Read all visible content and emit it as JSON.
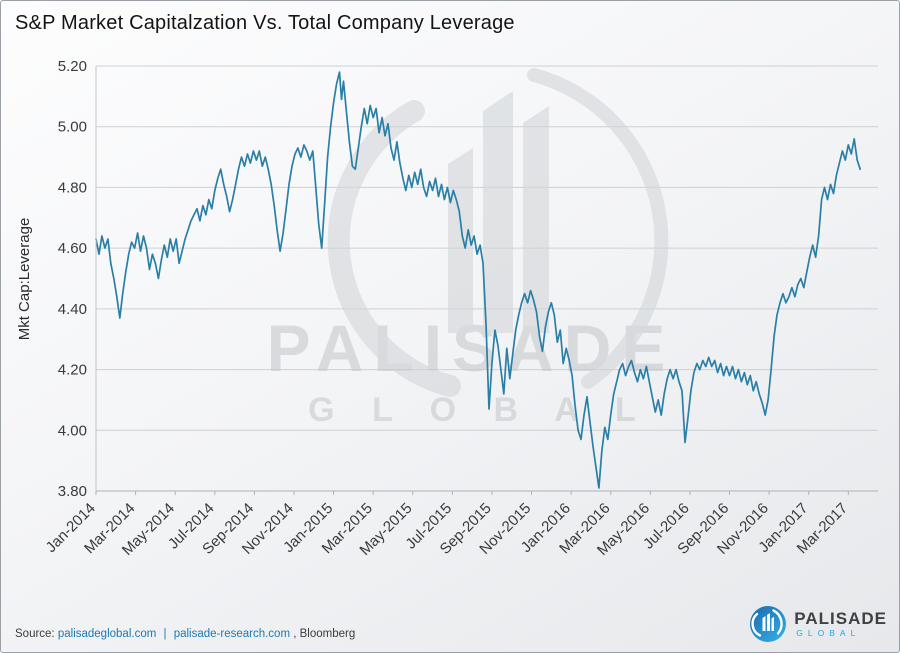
{
  "title": "S&P Market Capitalzation Vs. Total Company Leverage",
  "colors": {
    "line": "#2a7fa6",
    "grid": "#cdd0d3",
    "spine": "#aeb3b7",
    "left_spine": "#c2c6ca",
    "link": "#1d79b4",
    "watermark": "#cdd0d3",
    "logo_blue_dark": "#1a69ad",
    "logo_blue_light": "#35b1e8"
  },
  "watermark": {
    "line1": "PALISADE",
    "line2": "G L O B A L"
  },
  "footer": {
    "source_label": "Source:",
    "link1": "palisadeglobal.com",
    "separator": "|",
    "link2": "palisade-research.com",
    "suffix": ", Bloomberg"
  },
  "logo": {
    "name": "PALISADE",
    "sub": "GLOBAL"
  },
  "chart_data": {
    "type": "line",
    "title": "S&P Market Capitalzation Vs. Total Company Leverage",
    "xlabel": "",
    "ylabel": "Mkt Cap:Leverage",
    "ylim": [
      3.8,
      5.2
    ],
    "xlim_months_from_jan2014": [
      0,
      39.5
    ],
    "grid": "horizontal",
    "legend": "none",
    "line_color": "#2a7fa6",
    "y_ticks": [
      3.8,
      4.0,
      4.2,
      4.4,
      4.6,
      4.8,
      5.0,
      5.2
    ],
    "x_ticks": [
      {
        "label": "Jan-2014",
        "m": 0
      },
      {
        "label": "Mar-2014",
        "m": 2
      },
      {
        "label": "May-2014",
        "m": 4
      },
      {
        "label": "Jul-2014",
        "m": 6
      },
      {
        "label": "Sep-2014",
        "m": 8
      },
      {
        "label": "Nov-2014",
        "m": 10
      },
      {
        "label": "Jan-2015",
        "m": 12
      },
      {
        "label": "Mar-2015",
        "m": 14
      },
      {
        "label": "May-2015",
        "m": 16
      },
      {
        "label": "Jul-2015",
        "m": 18
      },
      {
        "label": "Sep-2015",
        "m": 20
      },
      {
        "label": "Nov-2015",
        "m": 22
      },
      {
        "label": "Jan-2016",
        "m": 24
      },
      {
        "label": "Mar-2016",
        "m": 26
      },
      {
        "label": "May-2016",
        "m": 28
      },
      {
        "label": "Jul-2016",
        "m": 30
      },
      {
        "label": "Sep-2016",
        "m": 32
      },
      {
        "label": "Nov-2016",
        "m": 34
      },
      {
        "label": "Jan-2017",
        "m": 36
      },
      {
        "label": "Mar-2017",
        "m": 38
      }
    ],
    "series": [
      {
        "name": "Mkt Cap:Leverage",
        "x_unit": "months since Jan-2014",
        "points": [
          [
            0,
            4.63
          ],
          [
            0.15,
            4.58
          ],
          [
            0.3,
            4.64
          ],
          [
            0.45,
            4.6
          ],
          [
            0.6,
            4.63
          ],
          [
            0.75,
            4.55
          ],
          [
            0.9,
            4.5
          ],
          [
            1.05,
            4.44
          ],
          [
            1.2,
            4.37
          ],
          [
            1.35,
            4.45
          ],
          [
            1.5,
            4.52
          ],
          [
            1.65,
            4.58
          ],
          [
            1.8,
            4.62
          ],
          [
            1.95,
            4.6
          ],
          [
            2.1,
            4.65
          ],
          [
            2.25,
            4.59
          ],
          [
            2.4,
            4.64
          ],
          [
            2.55,
            4.6
          ],
          [
            2.7,
            4.53
          ],
          [
            2.85,
            4.58
          ],
          [
            3,
            4.55
          ],
          [
            3.15,
            4.5
          ],
          [
            3.3,
            4.56
          ],
          [
            3.45,
            4.61
          ],
          [
            3.6,
            4.57
          ],
          [
            3.75,
            4.63
          ],
          [
            3.9,
            4.59
          ],
          [
            4.05,
            4.63
          ],
          [
            4.2,
            4.55
          ],
          [
            4.35,
            4.59
          ],
          [
            4.5,
            4.63
          ],
          [
            4.65,
            4.66
          ],
          [
            4.8,
            4.69
          ],
          [
            4.95,
            4.71
          ],
          [
            5.1,
            4.73
          ],
          [
            5.25,
            4.69
          ],
          [
            5.4,
            4.74
          ],
          [
            5.55,
            4.71
          ],
          [
            5.7,
            4.76
          ],
          [
            5.85,
            4.73
          ],
          [
            6,
            4.79
          ],
          [
            6.15,
            4.83
          ],
          [
            6.3,
            4.86
          ],
          [
            6.45,
            4.81
          ],
          [
            6.6,
            4.77
          ],
          [
            6.75,
            4.72
          ],
          [
            6.9,
            4.76
          ],
          [
            7.05,
            4.81
          ],
          [
            7.2,
            4.86
          ],
          [
            7.35,
            4.9
          ],
          [
            7.5,
            4.87
          ],
          [
            7.65,
            4.91
          ],
          [
            7.8,
            4.88
          ],
          [
            7.95,
            4.92
          ],
          [
            8.1,
            4.89
          ],
          [
            8.25,
            4.92
          ],
          [
            8.4,
            4.87
          ],
          [
            8.55,
            4.9
          ],
          [
            8.7,
            4.86
          ],
          [
            8.85,
            4.81
          ],
          [
            9,
            4.74
          ],
          [
            9.15,
            4.66
          ],
          [
            9.3,
            4.59
          ],
          [
            9.45,
            4.65
          ],
          [
            9.6,
            4.73
          ],
          [
            9.75,
            4.81
          ],
          [
            9.9,
            4.87
          ],
          [
            10.05,
            4.91
          ],
          [
            10.2,
            4.93
          ],
          [
            10.35,
            4.9
          ],
          [
            10.5,
            4.94
          ],
          [
            10.65,
            4.92
          ],
          [
            10.8,
            4.89
          ],
          [
            10.95,
            4.92
          ],
          [
            11.1,
            4.8
          ],
          [
            11.25,
            4.68
          ],
          [
            11.4,
            4.6
          ],
          [
            11.55,
            4.75
          ],
          [
            11.7,
            4.9
          ],
          [
            11.85,
            5
          ],
          [
            12,
            5.08
          ],
          [
            12.15,
            5.14
          ],
          [
            12.3,
            5.18
          ],
          [
            12.4,
            5.09
          ],
          [
            12.5,
            5.15
          ],
          [
            12.65,
            5.05
          ],
          [
            12.8,
            4.95
          ],
          [
            12.95,
            4.87
          ],
          [
            13.1,
            4.86
          ],
          [
            13.25,
            4.93
          ],
          [
            13.4,
            5
          ],
          [
            13.55,
            5.06
          ],
          [
            13.7,
            5.01
          ],
          [
            13.85,
            5.07
          ],
          [
            14,
            5.03
          ],
          [
            14.15,
            5.06
          ],
          [
            14.3,
            4.98
          ],
          [
            14.45,
            5.03
          ],
          [
            14.6,
            4.97
          ],
          [
            14.75,
            5.01
          ],
          [
            14.9,
            4.93
          ],
          [
            15.05,
            4.89
          ],
          [
            15.2,
            4.95
          ],
          [
            15.35,
            4.88
          ],
          [
            15.5,
            4.83
          ],
          [
            15.65,
            4.79
          ],
          [
            15.8,
            4.84
          ],
          [
            15.95,
            4.8
          ],
          [
            16.1,
            4.85
          ],
          [
            16.25,
            4.81
          ],
          [
            16.4,
            4.86
          ],
          [
            16.55,
            4.8
          ],
          [
            16.7,
            4.77
          ],
          [
            16.85,
            4.82
          ],
          [
            17,
            4.79
          ],
          [
            17.15,
            4.83
          ],
          [
            17.3,
            4.77
          ],
          [
            17.45,
            4.81
          ],
          [
            17.6,
            4.76
          ],
          [
            17.75,
            4.8
          ],
          [
            17.9,
            4.75
          ],
          [
            18.05,
            4.79
          ],
          [
            18.2,
            4.76
          ],
          [
            18.35,
            4.72
          ],
          [
            18.5,
            4.64
          ],
          [
            18.65,
            4.6
          ],
          [
            18.8,
            4.66
          ],
          [
            18.95,
            4.61
          ],
          [
            19.1,
            4.64
          ],
          [
            19.25,
            4.58
          ],
          [
            19.4,
            4.61
          ],
          [
            19.55,
            4.55
          ],
          [
            19.7,
            4.35
          ],
          [
            19.85,
            4.07
          ],
          [
            20,
            4.22
          ],
          [
            20.15,
            4.33
          ],
          [
            20.3,
            4.28
          ],
          [
            20.45,
            4.2
          ],
          [
            20.6,
            4.12
          ],
          [
            20.75,
            4.27
          ],
          [
            20.9,
            4.17
          ],
          [
            21.05,
            4.25
          ],
          [
            21.2,
            4.33
          ],
          [
            21.35,
            4.38
          ],
          [
            21.5,
            4.42
          ],
          [
            21.65,
            4.45
          ],
          [
            21.8,
            4.42
          ],
          [
            21.95,
            4.46
          ],
          [
            22.1,
            4.43
          ],
          [
            22.25,
            4.39
          ],
          [
            22.4,
            4.31
          ],
          [
            22.55,
            4.26
          ],
          [
            22.7,
            4.34
          ],
          [
            22.85,
            4.39
          ],
          [
            23,
            4.42
          ],
          [
            23.15,
            4.38
          ],
          [
            23.3,
            4.29
          ],
          [
            23.45,
            4.33
          ],
          [
            23.6,
            4.22
          ],
          [
            23.75,
            4.27
          ],
          [
            23.9,
            4.23
          ],
          [
            24.05,
            4.18
          ],
          [
            24.2,
            4.08
          ],
          [
            24.35,
            4
          ],
          [
            24.5,
            3.97
          ],
          [
            24.65,
            4.05
          ],
          [
            24.8,
            4.11
          ],
          [
            24.95,
            4.03
          ],
          [
            25.1,
            3.95
          ],
          [
            25.25,
            3.88
          ],
          [
            25.4,
            3.81
          ],
          [
            25.55,
            3.93
          ],
          [
            25.7,
            4.01
          ],
          [
            25.85,
            3.97
          ],
          [
            26,
            4.05
          ],
          [
            26.15,
            4.12
          ],
          [
            26.3,
            4.16
          ],
          [
            26.45,
            4.2
          ],
          [
            26.6,
            4.22
          ],
          [
            26.75,
            4.18
          ],
          [
            26.9,
            4.21
          ],
          [
            27.05,
            4.23
          ],
          [
            27.2,
            4.19
          ],
          [
            27.35,
            4.16
          ],
          [
            27.5,
            4.2
          ],
          [
            27.65,
            4.17
          ],
          [
            27.8,
            4.21
          ],
          [
            27.95,
            4.16
          ],
          [
            28.1,
            4.11
          ],
          [
            28.25,
            4.06
          ],
          [
            28.4,
            4.1
          ],
          [
            28.55,
            4.05
          ],
          [
            28.7,
            4.12
          ],
          [
            28.85,
            4.17
          ],
          [
            29,
            4.2
          ],
          [
            29.15,
            4.17
          ],
          [
            29.3,
            4.2
          ],
          [
            29.45,
            4.16
          ],
          [
            29.6,
            4.13
          ],
          [
            29.75,
            3.96
          ],
          [
            29.9,
            4.04
          ],
          [
            30.05,
            4.13
          ],
          [
            30.2,
            4.19
          ],
          [
            30.35,
            4.22
          ],
          [
            30.5,
            4.2
          ],
          [
            30.65,
            4.23
          ],
          [
            30.8,
            4.21
          ],
          [
            30.95,
            4.24
          ],
          [
            31.1,
            4.21
          ],
          [
            31.25,
            4.23
          ],
          [
            31.4,
            4.19
          ],
          [
            31.55,
            4.22
          ],
          [
            31.7,
            4.18
          ],
          [
            31.85,
            4.21
          ],
          [
            32,
            4.18
          ],
          [
            32.15,
            4.21
          ],
          [
            32.3,
            4.17
          ],
          [
            32.45,
            4.2
          ],
          [
            32.6,
            4.16
          ],
          [
            32.75,
            4.19
          ],
          [
            32.9,
            4.15
          ],
          [
            33.05,
            4.18
          ],
          [
            33.2,
            4.13
          ],
          [
            33.35,
            4.16
          ],
          [
            33.5,
            4.12
          ],
          [
            33.65,
            4.09
          ],
          [
            33.8,
            4.05
          ],
          [
            33.95,
            4.1
          ],
          [
            34.1,
            4.2
          ],
          [
            34.25,
            4.31
          ],
          [
            34.4,
            4.38
          ],
          [
            34.55,
            4.42
          ],
          [
            34.7,
            4.45
          ],
          [
            34.85,
            4.42
          ],
          [
            35,
            4.44
          ],
          [
            35.15,
            4.47
          ],
          [
            35.3,
            4.44
          ],
          [
            35.45,
            4.48
          ],
          [
            35.6,
            4.5
          ],
          [
            35.75,
            4.47
          ],
          [
            35.9,
            4.52
          ],
          [
            36.05,
            4.57
          ],
          [
            36.2,
            4.61
          ],
          [
            36.35,
            4.57
          ],
          [
            36.5,
            4.64
          ],
          [
            36.65,
            4.76
          ],
          [
            36.8,
            4.8
          ],
          [
            36.95,
            4.76
          ],
          [
            37.1,
            4.81
          ],
          [
            37.25,
            4.78
          ],
          [
            37.4,
            4.84
          ],
          [
            37.55,
            4.88
          ],
          [
            37.7,
            4.92
          ],
          [
            37.85,
            4.89
          ],
          [
            38,
            4.94
          ],
          [
            38.15,
            4.91
          ],
          [
            38.3,
            4.96
          ],
          [
            38.45,
            4.89
          ],
          [
            38.6,
            4.86
          ]
        ]
      }
    ]
  }
}
